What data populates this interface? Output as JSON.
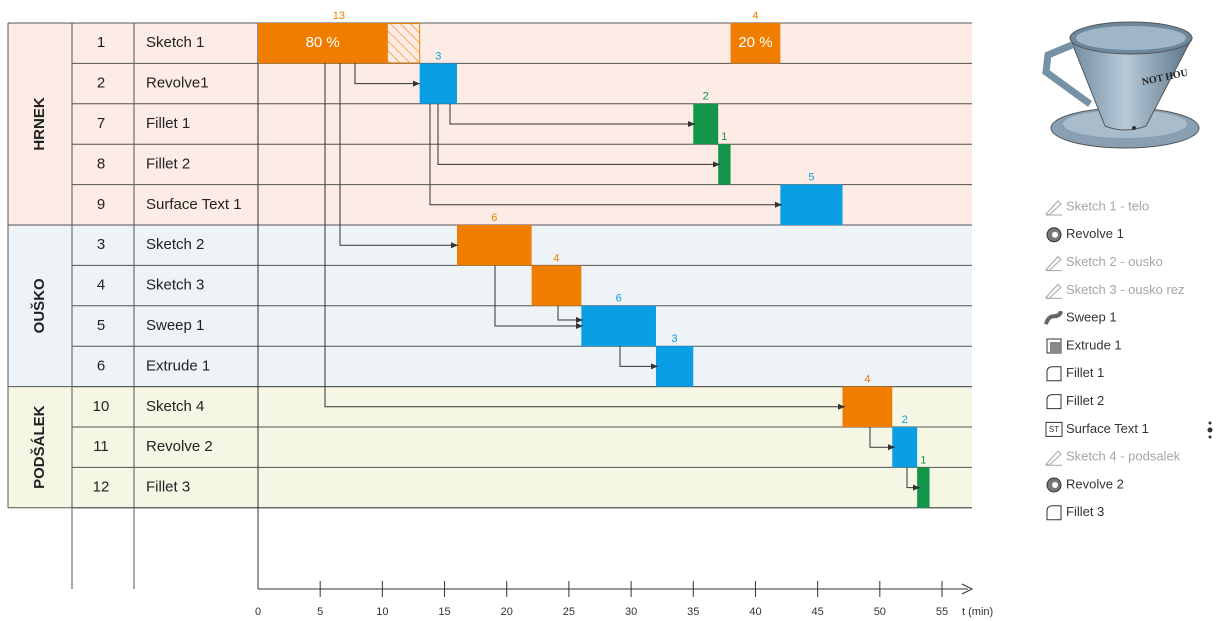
{
  "chart_data": {
    "type": "gantt",
    "xlabel": "t (min)",
    "xlim": [
      0,
      55
    ],
    "xticks": [
      0,
      5,
      10,
      15,
      20,
      25,
      30,
      35,
      40,
      45,
      50,
      55
    ],
    "groups": [
      {
        "name": "HRNEK",
        "color": "#fdebe5",
        "tasks": [
          {
            "id": 1,
            "name": "Sketch 1",
            "color": "#ef7d00",
            "bars": [
              {
                "start": 0,
                "duration": 13,
                "share": 80,
                "share_label": "80 %"
              },
              {
                "start": 38,
                "duration": 4,
                "share": 20,
                "share_label": "20 %"
              }
            ]
          },
          {
            "id": 2,
            "name": "Revolve1",
            "color": "#0a9fe4",
            "bars": [
              {
                "start": 13,
                "duration": 3
              }
            ]
          },
          {
            "id": 7,
            "name": "Fillet 1",
            "color": "#13964a",
            "bars": [
              {
                "start": 35,
                "duration": 2
              }
            ]
          },
          {
            "id": 8,
            "name": "Fillet 2",
            "color": "#13964a",
            "bars": [
              {
                "start": 37,
                "duration": 1
              }
            ]
          },
          {
            "id": 9,
            "name": "Surface Text 1",
            "color": "#0a9fe4",
            "bars": [
              {
                "start": 42,
                "duration": 5
              }
            ]
          }
        ]
      },
      {
        "name": "OUŠKO",
        "color": "#edf3f7",
        "tasks": [
          {
            "id": 3,
            "name": "Sketch 2",
            "color": "#ef7d00",
            "bars": [
              {
                "start": 16,
                "duration": 6
              }
            ]
          },
          {
            "id": 4,
            "name": "Sketch 3",
            "color": "#ef7d00",
            "bars": [
              {
                "start": 22,
                "duration": 4
              }
            ]
          },
          {
            "id": 5,
            "name": "Sweep 1",
            "color": "#0a9fe4",
            "bars": [
              {
                "start": 26,
                "duration": 6
              }
            ]
          },
          {
            "id": 6,
            "name": "Extrude 1",
            "color": "#0a9fe4",
            "bars": [
              {
                "start": 32,
                "duration": 3
              }
            ]
          }
        ]
      },
      {
        "name": "PODŠÁLEK",
        "color": "#f6f6e5",
        "tasks": [
          {
            "id": 10,
            "name": "Sketch 4",
            "color": "#ef7d00",
            "bars": [
              {
                "start": 47,
                "duration": 4
              }
            ]
          },
          {
            "id": 11,
            "name": "Revolve 2",
            "color": "#0a9fe4",
            "bars": [
              {
                "start": 51,
                "duration": 2
              }
            ]
          },
          {
            "id": 12,
            "name": "Fillet 3",
            "color": "#13964a",
            "bars": [
              {
                "start": 53,
                "duration": 1
              }
            ]
          }
        ]
      }
    ]
  },
  "cup_text": "NOT HOU",
  "feature_list": [
    {
      "label": "Sketch 1 - telo",
      "icon": "sketch",
      "disabled": true
    },
    {
      "label": "Revolve 1",
      "icon": "revolve",
      "disabled": false
    },
    {
      "label": "Sketch 2 - ousko",
      "icon": "sketch",
      "disabled": true
    },
    {
      "label": "Sketch 3 - ousko rez",
      "icon": "sketch",
      "disabled": true
    },
    {
      "label": "Sweep 1",
      "icon": "sweep",
      "disabled": false
    },
    {
      "label": "Extrude 1",
      "icon": "extrude",
      "disabled": false
    },
    {
      "label": "Fillet 1",
      "icon": "fillet",
      "disabled": false
    },
    {
      "label": "Fillet 2",
      "icon": "fillet",
      "disabled": false
    },
    {
      "label": "Surface Text 1",
      "icon": "text",
      "icon_text": "ST",
      "disabled": false
    },
    {
      "label": "Sketch 4 - podsalek",
      "icon": "sketch",
      "disabled": true
    },
    {
      "label": "Revolve 2",
      "icon": "revolve",
      "disabled": false
    },
    {
      "label": "Fillet 3",
      "icon": "fillet",
      "disabled": false
    }
  ]
}
